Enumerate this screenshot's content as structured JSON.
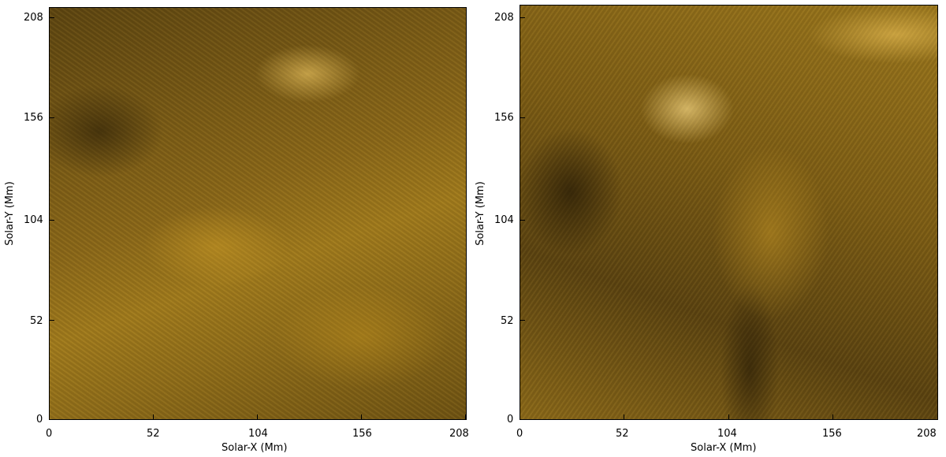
{
  "panels": [
    {
      "xlabel": "Solar-X (Mm)",
      "ylabel": "Solar-Y (Mm)",
      "x_ticks": [
        "0",
        "52",
        "104",
        "156",
        "208"
      ],
      "y_ticks": [
        "0",
        "52",
        "104",
        "156",
        "208"
      ],
      "image": "solar corona EUV image, dark-to-bright golden colormap"
    },
    {
      "xlabel": "Solar-X (Mm)",
      "ylabel": "Solar-Y (Mm)",
      "x_ticks": [
        "0",
        "52",
        "104",
        "156",
        "208"
      ],
      "y_ticks": [
        "0",
        "52",
        "104",
        "156",
        "208"
      ],
      "image": "solar corona EUV image, dark-to-bright golden colormap"
    }
  ],
  "colors": {
    "image_dark": "#2a1e06",
    "image_mid": "#8a6718",
    "image_bright": "#ffd66e",
    "axes": "#000000",
    "background": "#ffffff"
  }
}
